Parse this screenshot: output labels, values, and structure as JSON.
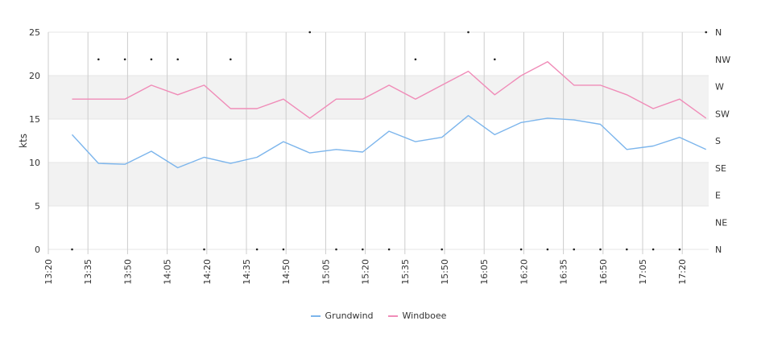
{
  "chart_data": {
    "type": "line",
    "ylabel": "kts",
    "ylim": [
      0,
      25
    ],
    "y_ticks": [
      0,
      5,
      10,
      15,
      20,
      25
    ],
    "x_range": [
      "13:20",
      "17:30"
    ],
    "x_ticks": [
      "13:20",
      "13:35",
      "13:50",
      "14:05",
      "14:20",
      "14:35",
      "14:50",
      "15:05",
      "15:20",
      "15:35",
      "15:50",
      "16:05",
      "16:20",
      "16:35",
      "16:50",
      "17:05",
      "17:20"
    ],
    "x": [
      "13:29",
      "13:39",
      "13:49",
      "13:59",
      "14:09",
      "14:19",
      "14:29",
      "14:39",
      "14:49",
      "14:59",
      "15:09",
      "15:19",
      "15:29",
      "15:39",
      "15:49",
      "15:59",
      "16:09",
      "16:19",
      "16:29",
      "16:39",
      "16:49",
      "16:59",
      "17:09",
      "17:19",
      "17:29"
    ],
    "series": [
      {
        "name": "Grundwind",
        "color": "#7cb5ec",
        "values": [
          13.2,
          9.9,
          9.8,
          11.3,
          9.4,
          10.6,
          9.9,
          10.6,
          12.4,
          11.1,
          11.5,
          11.2,
          13.6,
          12.4,
          12.9,
          15.4,
          13.2,
          14.6,
          15.1,
          14.9,
          14.4,
          11.5,
          11.9,
          12.9,
          11.5
        ]
      },
      {
        "name": "Windboee",
        "color": "#f08cb8",
        "values": [
          17.3,
          17.3,
          17.3,
          18.9,
          17.8,
          18.9,
          16.2,
          16.2,
          17.3,
          15.1,
          17.3,
          17.3,
          18.9,
          17.3,
          18.9,
          20.5,
          17.8,
          20.0,
          21.6,
          18.9,
          18.9,
          17.8,
          16.2,
          17.3,
          15.1
        ]
      }
    ],
    "direction_axis": {
      "labels": [
        "N",
        "NW",
        "W",
        "SW",
        "S",
        "SE",
        "E",
        "NE",
        "N"
      ],
      "values_deg": [
        360,
        315,
        270,
        225,
        180,
        135,
        90,
        45,
        0
      ]
    },
    "direction_series": [
      0,
      315,
      315,
      315,
      315,
      0,
      315,
      0,
      0,
      360,
      0,
      0,
      0,
      315,
      0,
      360,
      315,
      0,
      0,
      0,
      0,
      0,
      0,
      0,
      360
    ],
    "bands": [
      [
        5,
        10
      ],
      [
        15,
        20
      ]
    ],
    "grid": true,
    "legend": "bottom-center"
  },
  "colors": {
    "band": "#f2f2f2",
    "grid": "#cccccc",
    "axis": "#333333"
  }
}
